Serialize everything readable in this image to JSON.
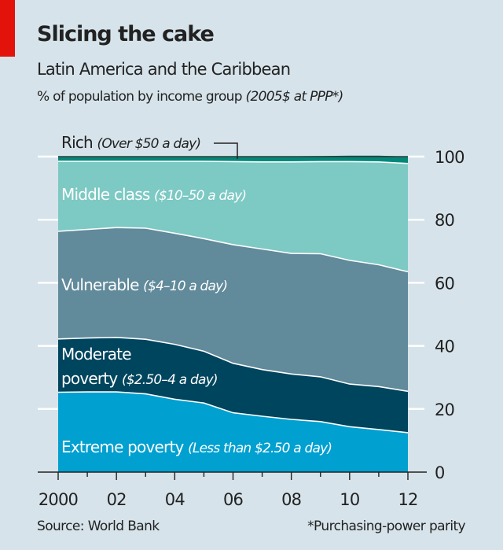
{
  "title": "Slicing the cake",
  "subtitle": "Latin America and the Caribbean",
  "unit_label": "% of population by income group",
  "unit_label_italic": "(2005$ at PPP*)",
  "source": "Source: World Bank",
  "footnote": "*Purchasing-power parity",
  "colors": {
    "background": "#d6e3ea",
    "accent": "#e3120b",
    "extreme": "#00a0d0",
    "moderate": "#00455e",
    "vulnerable": "#618a9b",
    "middle": "#7dc9c4",
    "rich": "#00897a"
  },
  "chart_data": {
    "type": "area",
    "stacked": true,
    "title": "Slicing the cake",
    "subtitle": "Latin America and the Caribbean",
    "ylabel": "% of population by income group (2005$ at PPP*)",
    "xlabel": "",
    "x": [
      2000,
      2001,
      2002,
      2003,
      2004,
      2005,
      2006,
      2007,
      2008,
      2009,
      2010,
      2011,
      2012
    ],
    "x_tick_labels": [
      "2000",
      "02",
      "04",
      "06",
      "08",
      "10",
      "12"
    ],
    "x_tick_values": [
      2000,
      2002,
      2004,
      2006,
      2008,
      2010,
      2012
    ],
    "y_ticks": [
      0,
      20,
      40,
      60,
      80,
      100
    ],
    "ylim": [
      0,
      100
    ],
    "grid": true,
    "y_axis_side": "right",
    "series": [
      {
        "name": "Extreme poverty",
        "detail": "(Less than $2.50 a day)",
        "color": "#00a0d0",
        "values": [
          25.3,
          25.4,
          25.4,
          24.8,
          23.1,
          21.9,
          18.8,
          17.7,
          16.7,
          16.0,
          14.4,
          13.5,
          12.5
        ]
      },
      {
        "name": "Moderate poverty",
        "detail": "($2.50–4 a day)",
        "color": "#00455e",
        "values": [
          16.9,
          17.1,
          17.3,
          17.3,
          17.4,
          16.4,
          15.7,
          14.8,
          14.4,
          14.2,
          13.5,
          13.6,
          13.1
        ]
      },
      {
        "name": "Vulnerable",
        "detail": "($4–10 a day)",
        "color": "#618a9b",
        "values": [
          34.1,
          34.4,
          34.8,
          35.2,
          35.2,
          35.7,
          37.6,
          38.2,
          38.2,
          39.0,
          39.2,
          38.6,
          37.9
        ]
      },
      {
        "name": "Middle class",
        "detail": "($10–50 a day)",
        "color": "#7dc9c4",
        "values": [
          22.2,
          21.6,
          21.0,
          21.2,
          22.8,
          24.5,
          26.3,
          27.6,
          29.0,
          29.2,
          31.3,
          32.6,
          34.3
        ]
      },
      {
        "name": "Rich",
        "detail": "(Over $50 a day)",
        "color": "#00897a",
        "values": [
          1.5,
          1.5,
          1.5,
          1.5,
          1.5,
          1.6,
          1.6,
          1.7,
          1.8,
          1.8,
          1.9,
          2.0,
          2.2
        ]
      }
    ],
    "labels": {
      "rich": {
        "name": "Rich",
        "detail": "(Over $50 a day)"
      },
      "middle": {
        "name": "Middle class",
        "detail": "($10–50 a day)"
      },
      "vulnerable": {
        "name": "Vulnerable",
        "detail": "($4–10 a day)"
      },
      "moderate_line1": "Moderate",
      "moderate_line2": "poverty",
      "moderate_detail": "($2.50–4 a day)",
      "extreme": {
        "name": "Extreme poverty",
        "detail": "(Less than $2.50 a day)"
      }
    }
  }
}
